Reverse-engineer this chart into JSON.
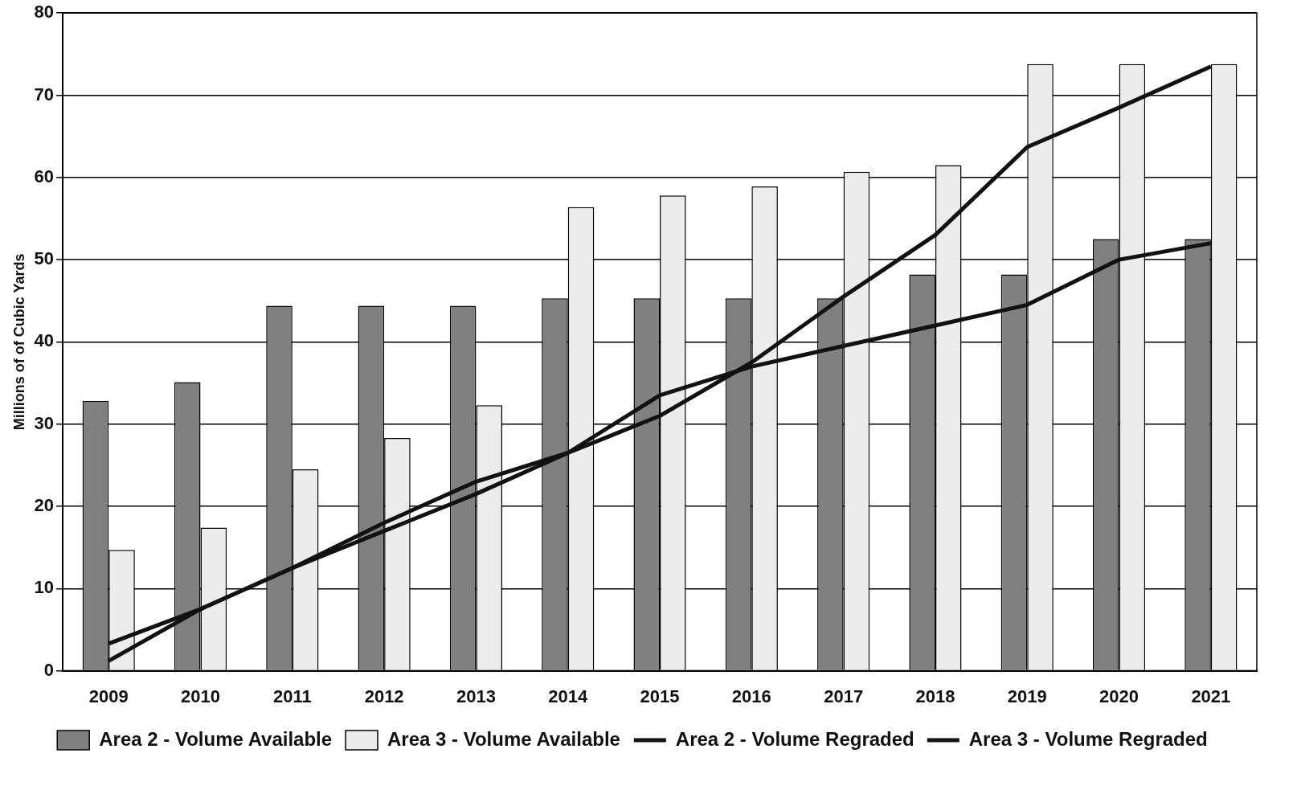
{
  "chart_data": {
    "type": "bar",
    "ylabel": "Millions of of Cubic Yards",
    "categories": [
      "2009",
      "2010",
      "2011",
      "2012",
      "2013",
      "2014",
      "2015",
      "2016",
      "2017",
      "2018",
      "2019",
      "2020",
      "2021"
    ],
    "series": [
      {
        "name": "Area 2 - Volume Available",
        "color": "#808080",
        "values": [
          32.8,
          35.1,
          44.4,
          44.4,
          44.4,
          45.3,
          45.3,
          45.3,
          45.3,
          48.2,
          48.2,
          52.5,
          52.5
        ]
      },
      {
        "name": "Area 3 - Volume Available",
        "color": "#ececec",
        "values": [
          14.7,
          17.4,
          24.5,
          28.3,
          32.3,
          56.4,
          57.8,
          58.9,
          60.7,
          61.5,
          73.8,
          73.8,
          73.8
        ]
      },
      {
        "name": "Area 2 - Volume Regraded",
        "type": "line",
        "color": "#111111",
        "values": [
          3.3,
          7.5,
          12.5,
          18,
          23,
          26.5,
          33.5,
          37,
          39.5,
          42,
          44.5,
          50,
          52
        ]
      },
      {
        "name": "Area 3 - Volume Regraded",
        "type": "line",
        "color": "#111111",
        "values": [
          1.2,
          7.5,
          12.5,
          17,
          21.5,
          26.5,
          31,
          37.5,
          45.5,
          53,
          63.7,
          68.5,
          73.5
        ]
      }
    ],
    "ylim": [
      0,
      80
    ],
    "yticks": [
      0,
      10,
      20,
      30,
      40,
      50,
      60,
      70,
      80
    ],
    "grid": "y",
    "legend": "bottom",
    "marker": "none",
    "line_style": "solid"
  }
}
